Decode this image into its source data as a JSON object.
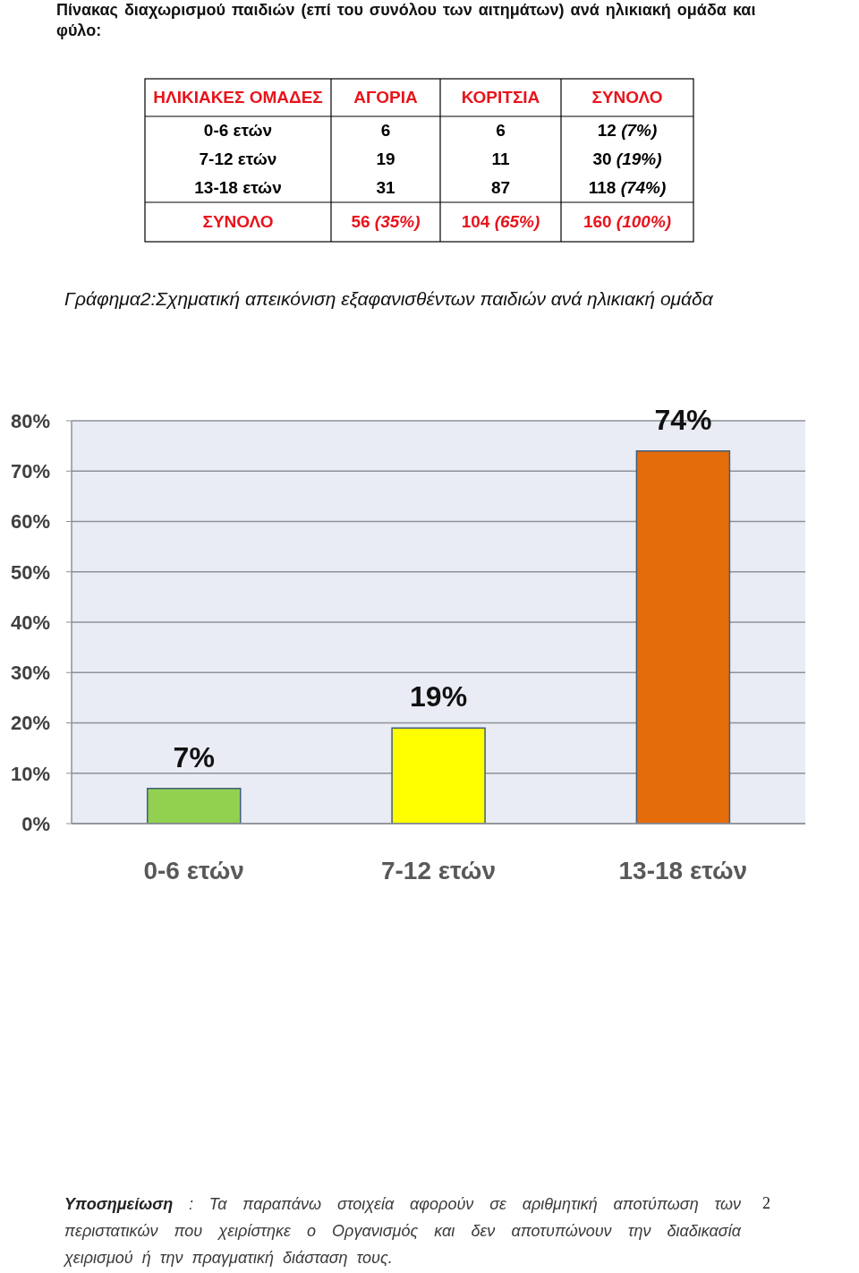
{
  "chart_data": [
    {
      "type": "other",
      "title": "Πίνακας διαχωρισμού παιδιών (επί του συνόλου των αιτημάτων) ανά ηλικιακή ομάδα και φύλο:",
      "annotations": [
        "ΗΛΙΚΙΑΚΕΣ ΟΜΑΔΕΣ",
        "ΑΓΟΡΙΑ",
        "ΚΟΡΙΤΣΙΑ",
        "ΣΥΝΟΛΟ",
        "0-6 ετών",
        "6",
        "6",
        "12 (7%)",
        "7-12 ετών",
        "19",
        "11",
        "30 (19%)",
        "13-18 ετών",
        "31",
        "87",
        "118 (74%)",
        "ΣΥΝΟΛΟ",
        "56 (35%)",
        "104 (65%)",
        "160 (100%)"
      ]
    },
    {
      "type": "bar",
      "title": "Γράφημα2:Σχηματική απεικόνιση εξαφανισθέντων παιδιών ανά ηλικιακή ομάδα",
      "categories": [
        "0-6 ετών",
        "7-12 ετών",
        "13-18 ετών"
      ],
      "values": [
        7,
        19,
        74
      ],
      "colors": [
        "#92d050",
        "#ffff00",
        "#e46c0a"
      ],
      "value_labels": [
        "7%",
        "19%",
        "74%"
      ],
      "ylim": [
        0,
        80
      ],
      "yticks": [
        {
          "value": 0,
          "label": "0%"
        },
        {
          "value": 10,
          "label": "10%"
        },
        {
          "value": 20,
          "label": "20%"
        },
        {
          "value": 30,
          "label": "30%"
        },
        {
          "value": 40,
          "label": "40%"
        },
        {
          "value": 50,
          "label": "50%"
        },
        {
          "value": 60,
          "label": "60%"
        },
        {
          "value": 70,
          "label": "70%"
        },
        {
          "value": 80,
          "label": "80%"
        }
      ],
      "grid": "y",
      "annotations": [
        "Υποσημείωση : Τα παραπάνω στοιχεία αφορούν σε αριθμητική αποτύπωση των περιστατικών που χειρίστηκε ο Οργανισμός και δεν αποτυπώνουν την διαδικασία χειρισμού ή την πραγματική διάσταση τους.",
        "2"
      ]
    }
  ]
}
